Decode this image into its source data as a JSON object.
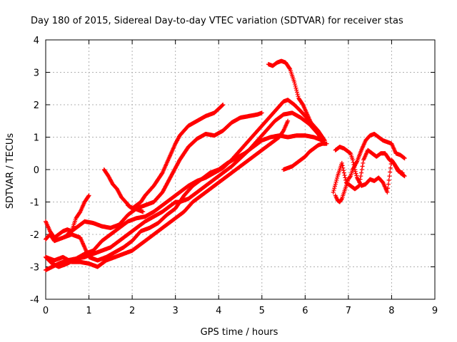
{
  "chart_data": {
    "type": "scatter",
    "title": "Day 180 of 2015, Sidereal Day-to-day VTEC variation (SDTVAR) for receiver stas",
    "xlabel": "GPS time / hours",
    "ylabel": "SDTVAR / TECUs",
    "xlim": [
      0,
      9
    ],
    "ylim": [
      -4,
      4
    ],
    "xticks": [
      "0",
      "1",
      "2",
      "3",
      "4",
      "5",
      "6",
      "7",
      "8",
      "9"
    ],
    "yticks": [
      "-4",
      "-3",
      "-2",
      "-1",
      "0",
      "1",
      "2",
      "3",
      "4"
    ],
    "grid": true,
    "marker": "plus",
    "color": "#ff0000",
    "series": [
      {
        "x": [
          0.0,
          0.15,
          0.3,
          0.5,
          0.7,
          0.9,
          1.1,
          1.3,
          1.5,
          1.7,
          1.9,
          2.1,
          2.3,
          2.5,
          2.7,
          2.9,
          3.0,
          3.1,
          3.3,
          3.5,
          3.7,
          3.9,
          4.1,
          4.3,
          4.5,
          4.7,
          4.9,
          5.1,
          5.3,
          5.5,
          5.7,
          5.9,
          6.1,
          6.3,
          6.45
        ],
        "values": [
          -3.1,
          -3.0,
          -2.9,
          -2.8,
          -2.75,
          -2.7,
          -2.6,
          -2.5,
          -2.4,
          -2.2,
          -2.0,
          -1.8,
          -1.6,
          -1.45,
          -1.3,
          -1.1,
          -1.0,
          -1.0,
          -0.9,
          -0.7,
          -0.5,
          -0.3,
          -0.1,
          0.1,
          0.35,
          0.6,
          0.9,
          1.2,
          1.5,
          1.7,
          1.75,
          1.6,
          1.4,
          1.1,
          0.8
        ]
      },
      {
        "x": [
          0.0,
          0.15,
          0.3,
          0.5,
          0.7,
          0.9,
          1.1,
          1.3,
          1.5,
          1.7,
          1.9,
          2.1,
          2.3,
          2.5,
          2.7,
          2.9,
          3.1,
          3.3,
          3.5,
          3.7,
          3.9,
          4.1,
          4.3,
          4.5,
          4.7,
          4.9,
          5.1,
          5.3,
          5.5,
          5.6,
          5.75,
          5.9,
          6.1,
          6.3,
          6.45
        ],
        "values": [
          -2.7,
          -2.9,
          -3.0,
          -2.9,
          -2.75,
          -2.6,
          -2.5,
          -2.2,
          -2.0,
          -1.8,
          -1.6,
          -1.5,
          -1.45,
          -1.3,
          -1.1,
          -0.9,
          -0.7,
          -0.5,
          -0.35,
          -0.25,
          -0.1,
          0.05,
          0.3,
          0.6,
          0.9,
          1.2,
          1.5,
          1.8,
          2.1,
          2.15,
          2.0,
          1.8,
          1.5,
          1.2,
          0.9
        ]
      },
      {
        "x": [
          0.0,
          0.1,
          0.2,
          0.4,
          0.6,
          0.8,
          1.0,
          1.2,
          1.4,
          1.6,
          1.8,
          2.0,
          2.2,
          2.4,
          2.6,
          2.8,
          3.0,
          3.2,
          3.4,
          3.6,
          3.8,
          4.0,
          4.2,
          4.4,
          4.6,
          4.8,
          5.0,
          5.2,
          5.4,
          5.6,
          5.8,
          6.0,
          6.2,
          6.4
        ],
        "values": [
          -2.15,
          -2.0,
          -2.2,
          -2.1,
          -2.0,
          -2.1,
          -2.7,
          -2.8,
          -2.7,
          -2.55,
          -2.4,
          -2.2,
          -1.9,
          -1.8,
          -1.65,
          -1.4,
          -1.2,
          -0.8,
          -0.5,
          -0.3,
          -0.1,
          0.0,
          0.2,
          0.35,
          0.5,
          0.7,
          0.9,
          1.0,
          1.05,
          1.0,
          1.05,
          1.05,
          1.0,
          0.9
        ]
      },
      {
        "x": [
          0.0,
          0.2,
          0.4,
          0.6,
          0.8,
          1.0,
          1.2,
          1.4,
          1.6,
          1.8,
          2.0,
          2.2,
          2.4,
          2.6,
          2.8,
          3.0,
          3.2,
          3.4,
          3.6,
          3.8,
          4.0,
          4.2,
          4.4,
          4.6,
          4.8,
          5.0,
          5.2,
          5.4,
          5.5,
          5.6
        ],
        "values": [
          -2.7,
          -2.8,
          -2.7,
          -2.85,
          -2.85,
          -2.9,
          -3.0,
          -2.8,
          -2.7,
          -2.6,
          -2.5,
          -2.3,
          -2.1,
          -1.9,
          -1.7,
          -1.5,
          -1.3,
          -1.0,
          -0.8,
          -0.6,
          -0.4,
          -0.2,
          0.0,
          0.2,
          0.4,
          0.6,
          0.8,
          1.0,
          1.2,
          1.5
        ]
      },
      {
        "x": [
          0.0,
          0.1,
          0.2,
          0.3,
          0.4,
          0.5,
          0.6,
          0.7,
          0.8,
          0.9,
          1.0
        ],
        "values": [
          -1.6,
          -1.9,
          -2.1,
          -2.0,
          -1.9,
          -1.85,
          -1.9,
          -1.5,
          -1.3,
          -1.0,
          -0.8
        ]
      },
      {
        "x": [
          0.5,
          0.7,
          0.9,
          1.1,
          1.3,
          1.5,
          1.7,
          1.9,
          2.1,
          2.3,
          2.5,
          2.7,
          2.9,
          3.1,
          3.3,
          3.5,
          3.7,
          3.9,
          4.1,
          4.3,
          4.5,
          4.7,
          4.9,
          5.0
        ],
        "values": [
          -2.0,
          -1.8,
          -1.6,
          -1.65,
          -1.75,
          -1.8,
          -1.7,
          -1.4,
          -1.2,
          -1.1,
          -1.0,
          -0.7,
          -0.2,
          0.3,
          0.7,
          0.95,
          1.1,
          1.05,
          1.2,
          1.45,
          1.6,
          1.65,
          1.7,
          1.75
        ]
      },
      {
        "x": [
          1.35,
          1.45,
          1.55,
          1.65,
          1.75,
          1.85,
          1.95,
          2.05,
          2.15,
          2.25
        ],
        "values": [
          0.0,
          -0.2,
          -0.45,
          -0.6,
          -0.85,
          -1.0,
          -1.15,
          -1.2,
          -1.25,
          -1.3
        ]
      },
      {
        "x": [
          1.9,
          2.0,
          2.1,
          2.2,
          2.3,
          2.4,
          2.5,
          2.6,
          2.7,
          2.8,
          2.9,
          3.0,
          3.1,
          3.2,
          3.3,
          3.5,
          3.7,
          3.9,
          4.1
        ],
        "values": [
          -1.1,
          -1.2,
          -1.1,
          -1.0,
          -0.8,
          -0.65,
          -0.5,
          -0.3,
          -0.1,
          0.2,
          0.5,
          0.8,
          1.05,
          1.2,
          1.35,
          1.5,
          1.65,
          1.75,
          2.0
        ]
      },
      {
        "x": [
          5.15,
          5.25,
          5.35,
          5.45,
          5.55,
          5.65,
          5.75,
          5.85,
          5.95,
          6.05,
          6.15,
          6.25,
          6.35,
          6.45
        ],
        "values": [
          3.25,
          3.2,
          3.3,
          3.35,
          3.3,
          3.1,
          2.7,
          2.2,
          2.0,
          1.7,
          1.4,
          1.2,
          1.0,
          0.9
        ]
      },
      {
        "x": [
          5.5,
          5.6,
          5.7,
          5.8,
          5.9,
          6.0,
          6.1,
          6.2,
          6.3,
          6.4,
          6.5
        ],
        "values": [
          0.0,
          0.05,
          0.1,
          0.2,
          0.3,
          0.4,
          0.55,
          0.65,
          0.75,
          0.8,
          0.8
        ]
      },
      {
        "x": [
          6.7,
          6.75,
          6.8,
          6.85,
          6.9,
          6.95,
          7.0,
          7.05,
          7.1,
          7.2,
          7.3,
          7.4,
          7.5,
          7.6,
          7.7,
          7.8,
          7.9,
          8.0,
          8.1,
          8.2,
          8.3
        ],
        "values": [
          -0.8,
          -0.95,
          -1.0,
          -0.9,
          -0.7,
          -0.5,
          -0.3,
          -0.2,
          0.0,
          0.25,
          0.6,
          0.9,
          1.05,
          1.1,
          1.0,
          0.9,
          0.85,
          0.8,
          0.5,
          0.45,
          0.35
        ]
      },
      {
        "x": [
          6.7,
          6.8,
          6.9,
          7.0,
          7.05,
          7.1,
          7.15,
          7.2,
          7.3,
          7.4,
          7.5,
          7.6,
          7.7,
          7.8,
          7.9,
          8.0,
          8.1,
          8.2,
          8.3
        ],
        "values": [
          0.6,
          0.7,
          0.65,
          0.55,
          0.5,
          0.3,
          0.0,
          -0.25,
          -0.5,
          -0.45,
          -0.3,
          -0.35,
          -0.25,
          -0.4,
          -0.7,
          0.3,
          0.1,
          -0.1,
          -0.2
        ]
      },
      {
        "x": [
          6.65,
          6.75,
          6.85,
          6.95,
          7.05,
          7.15,
          7.25,
          7.35,
          7.45,
          7.55,
          7.65,
          7.75,
          7.85,
          7.95,
          8.05,
          8.15,
          8.25
        ],
        "values": [
          -0.7,
          -0.2,
          0.2,
          -0.4,
          -0.5,
          -0.6,
          -0.5,
          0.3,
          0.6,
          0.5,
          0.4,
          0.5,
          0.5,
          0.3,
          0.2,
          -0.05,
          -0.1
        ]
      }
    ]
  }
}
